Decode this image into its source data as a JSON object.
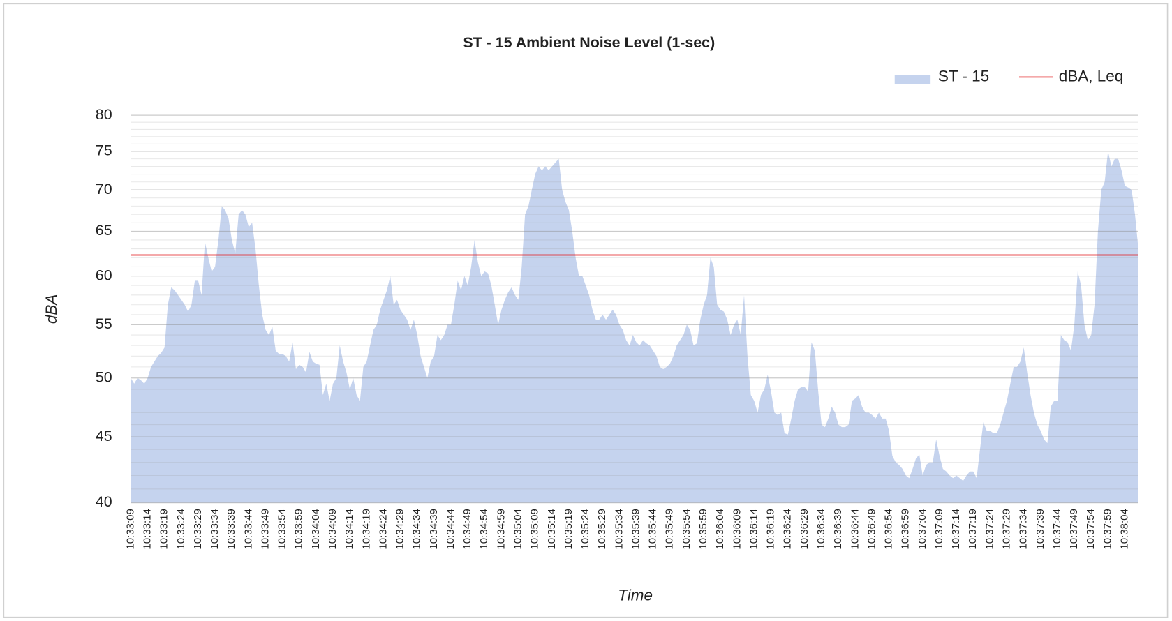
{
  "chart_data": {
    "type": "area",
    "title": "ST - 15 Ambient Noise Level (1-sec)",
    "x_label": "Time",
    "y_label": "dBA",
    "log_scale": true,
    "grid": true,
    "minor_grid": true,
    "legend": "top-right",
    "ylim": [
      40,
      80
    ],
    "yticks": [
      40,
      45,
      50,
      55,
      60,
      65,
      70,
      75,
      80
    ],
    "categories": [
      "10:33:09",
      null,
      null,
      null,
      null,
      "10:33:14",
      null,
      null,
      null,
      null,
      "10:33:19",
      null,
      null,
      null,
      null,
      "10:33:24",
      null,
      null,
      null,
      null,
      "10:33:29",
      null,
      null,
      null,
      null,
      "10:33:34",
      null,
      null,
      null,
      null,
      "10:33:39",
      null,
      null,
      null,
      null,
      "10:33:44",
      null,
      null,
      null,
      null,
      "10:33:49",
      null,
      null,
      null,
      null,
      "10:33:54",
      null,
      null,
      null,
      null,
      "10:33:59",
      null,
      null,
      null,
      null,
      "10:34:04",
      null,
      null,
      null,
      null,
      "10:34:09",
      null,
      null,
      null,
      null,
      "10:34:14",
      null,
      null,
      null,
      null,
      "10:34:19",
      null,
      null,
      null,
      null,
      "10:34:24",
      null,
      null,
      null,
      null,
      "10:34:29",
      null,
      null,
      null,
      null,
      "10:34:34",
      null,
      null,
      null,
      null,
      "10:34:39",
      null,
      null,
      null,
      null,
      "10:34:44",
      null,
      null,
      null,
      null,
      "10:34:49",
      null,
      null,
      null,
      null,
      "10:34:54",
      null,
      null,
      null,
      null,
      "10:34:59",
      null,
      null,
      null,
      null,
      "10:35:04",
      null,
      null,
      null,
      null,
      "10:35:09",
      null,
      null,
      null,
      null,
      "10:35:14",
      null,
      null,
      null,
      null,
      "10:35:19",
      null,
      null,
      null,
      null,
      "10:35:24",
      null,
      null,
      null,
      null,
      "10:35:29",
      null,
      null,
      null,
      null,
      "10:35:34",
      null,
      null,
      null,
      null,
      "10:35:39",
      null,
      null,
      null,
      null,
      "10:35:44",
      null,
      null,
      null,
      null,
      "10:35:49",
      null,
      null,
      null,
      null,
      "10:35:54",
      null,
      null,
      null,
      null,
      "10:35:59",
      null,
      null,
      null,
      null,
      "10:36:04",
      null,
      null,
      null,
      null,
      "10:36:09",
      null,
      null,
      null,
      null,
      "10:36:14",
      null,
      null,
      null,
      null,
      "10:36:19",
      null,
      null,
      null,
      null,
      "10:36:24",
      null,
      null,
      null,
      null,
      "10:36:29",
      null,
      null,
      null,
      null,
      "10:36:34",
      null,
      null,
      null,
      null,
      "10:36:39",
      null,
      null,
      null,
      null,
      "10:36:44",
      null,
      null,
      null,
      null,
      "10:36:49",
      null,
      null,
      null,
      null,
      "10:36:54",
      null,
      null,
      null,
      null,
      "10:36:59",
      null,
      null,
      null,
      null,
      "10:37:04",
      null,
      null,
      null,
      null,
      "10:37:09",
      null,
      null,
      null,
      null,
      "10:37:14",
      null,
      null,
      null,
      null,
      "10:37:19",
      null,
      null,
      null,
      null,
      "10:37:24",
      null,
      null,
      null,
      null,
      "10:37:29",
      null,
      null,
      null,
      null,
      "10:37:34",
      null,
      null,
      null,
      null,
      "10:37:39",
      null,
      null,
      null,
      null,
      "10:37:44",
      null,
      null,
      null,
      null,
      "10:37:49",
      null,
      null,
      null,
      null,
      "10:37:54",
      null,
      null,
      null,
      null,
      "10:37:59",
      null,
      null,
      null,
      null,
      "10:38:04",
      null,
      null,
      null,
      null
    ],
    "series": [
      {
        "name": "ST - 15",
        "color": "#c5d3ee",
        "values": [
          50,
          49.5,
          50,
          49.8,
          49.5,
          50,
          51,
          51.5,
          52,
          52.3,
          52.8,
          57,
          58.8,
          58.5,
          58,
          57.5,
          57,
          56.3,
          57,
          59.5,
          59.5,
          58,
          63.8,
          62,
          60.5,
          61,
          64,
          68,
          67.5,
          66.5,
          64,
          62.5,
          67,
          67.5,
          67,
          65.5,
          66,
          63,
          59,
          56,
          54.5,
          54,
          54.8,
          52.5,
          52.2,
          52.2,
          52,
          51.5,
          53.3,
          50.8,
          51.2,
          51,
          50.5,
          52.4,
          51.5,
          51.3,
          51.2,
          48.5,
          49.5,
          48,
          49.5,
          50,
          53,
          51.5,
          50.5,
          49,
          50,
          48.5,
          48,
          51,
          51.5,
          53,
          54.5,
          55,
          56.5,
          57.5,
          58.5,
          60,
          57,
          57.5,
          56.5,
          56,
          55.5,
          54.5,
          55.5,
          54,
          52,
          51,
          50,
          51.5,
          52,
          54,
          53.5,
          54,
          55,
          55,
          57,
          59.5,
          58.5,
          60,
          59,
          61,
          64,
          61.5,
          60,
          60.5,
          60.3,
          59,
          57,
          55,
          56.5,
          57.5,
          58.3,
          58.8,
          58,
          57.5,
          61,
          67,
          68,
          70,
          72,
          73,
          72.5,
          73,
          72.5,
          73,
          73.5,
          74,
          70,
          68.5,
          67.5,
          65,
          62,
          60,
          60,
          59,
          58,
          56.5,
          55.5,
          55.5,
          56,
          55.5,
          56,
          56.5,
          56,
          55,
          54.5,
          53.5,
          53,
          54,
          53.3,
          53,
          53.5,
          53.2,
          53,
          52.5,
          52,
          51,
          50.8,
          51,
          51.3,
          52,
          53,
          53.5,
          54,
          55,
          54.5,
          53,
          53.2,
          55.5,
          57,
          58,
          62,
          61,
          57,
          56.5,
          56.3,
          55.5,
          54,
          55,
          55.5,
          54,
          58,
          52,
          48.5,
          48,
          47,
          48.5,
          49,
          50.3,
          48.8,
          47,
          46.8,
          47,
          45.3,
          45.2,
          46.5,
          48,
          49,
          49.2,
          49.2,
          48.8,
          53.3,
          52.5,
          48.8,
          46,
          45.8,
          46.5,
          47.5,
          47,
          46,
          45.8,
          45.8,
          46,
          48,
          48.2,
          48.5,
          47.5,
          47,
          47,
          46.8,
          46.5,
          47,
          46.5,
          46.5,
          45.5,
          43.5,
          43,
          42.8,
          42.5,
          42,
          41.8,
          42.5,
          43.3,
          43.6,
          42,
          42.8,
          43,
          43,
          44.8,
          43.5,
          42.5,
          42.3,
          42,
          41.8,
          42,
          41.8,
          41.6,
          42,
          42.3,
          42.3,
          41.8,
          44,
          46.2,
          45.5,
          45.5,
          45.3,
          45.3,
          46,
          47,
          48,
          49.5,
          51,
          51,
          51.5,
          52.8,
          50.5,
          48.5,
          47,
          46,
          45.5,
          44.8,
          44.5,
          47.5,
          48,
          48,
          54,
          53.5,
          53.3,
          52.5,
          55,
          60.5,
          59,
          55,
          53.5,
          54,
          57,
          65,
          70,
          71,
          75,
          73,
          74,
          74,
          72.5,
          70.5,
          70.3,
          70,
          67,
          63
        ]
      }
    ],
    "reference_lines": [
      {
        "name": "dBA, Leq",
        "color": "#e31a1c",
        "value": 62.3
      }
    ]
  }
}
